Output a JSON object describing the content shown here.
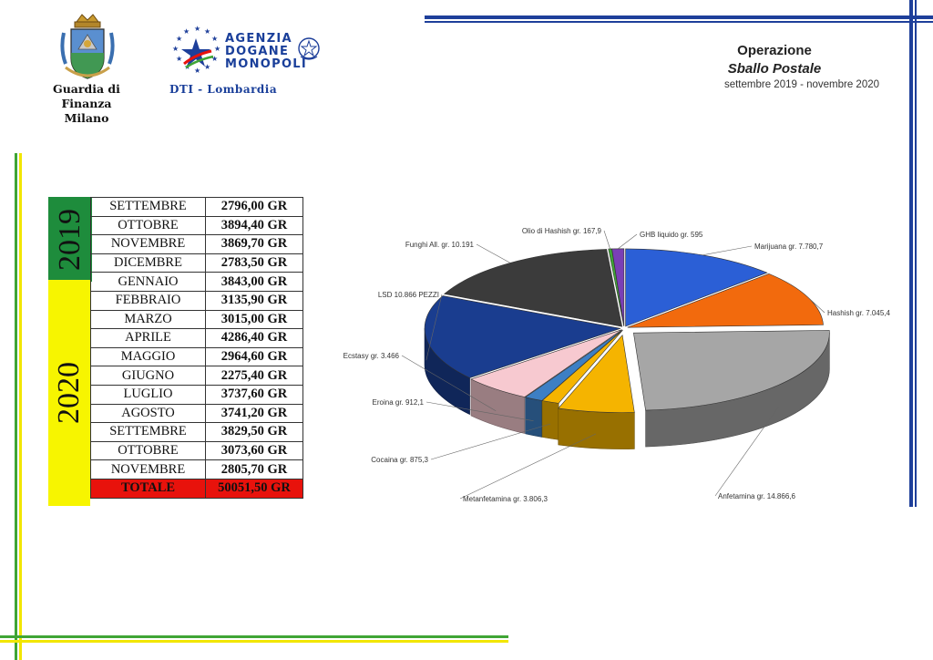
{
  "header": {
    "gdf_line1": "Guardia di Finanza",
    "gdf_line2": "Milano",
    "adm_line1": "AGENZIA",
    "adm_line2": "DOGANE",
    "adm_line3": "MONOPOLI",
    "dti_label": "DTI - Lombardia",
    "operation_title": "Operazione",
    "operation_name": "Sballo Postale",
    "operation_period": "settembre 2019 - novembre 2020"
  },
  "colors": {
    "green": "#1e8c3c",
    "yellow": "#f7f500",
    "blue": "#1e3f9a",
    "total_red": "#e8120c"
  },
  "table": {
    "years": [
      {
        "label": "2019",
        "rows": 4,
        "color": "#1e8c3c"
      },
      {
        "label": "2020",
        "rows": 11,
        "color": "#f7f500"
      }
    ],
    "rows": [
      {
        "month": "SETTEMBRE",
        "value": "2796,00 GR"
      },
      {
        "month": "OTTOBRE",
        "value": "3894,40 GR"
      },
      {
        "month": "NOVEMBRE",
        "value": "3869,70 GR"
      },
      {
        "month": "DICEMBRE",
        "value": "2783,50 GR"
      },
      {
        "month": "GENNAIO",
        "value": "3843,00 GR"
      },
      {
        "month": "FEBBRAIO",
        "value": "3135,90 GR"
      },
      {
        "month": "MARZO",
        "value": "3015,00 GR"
      },
      {
        "month": "APRILE",
        "value": "4286,40 GR"
      },
      {
        "month": "MAGGIO",
        "value": "2964,60 GR"
      },
      {
        "month": "GIUGNO",
        "value": "2275,40 GR"
      },
      {
        "month": "LUGLIO",
        "value": "3737,60 GR"
      },
      {
        "month": "AGOSTO",
        "value": "3741,20 GR"
      },
      {
        "month": "SETTEMBRE",
        "value": "3829,50 GR"
      },
      {
        "month": "OTTOBRE",
        "value": "3073,60 GR"
      },
      {
        "month": "NOVEMBRE",
        "value": "2805,70 GR"
      }
    ],
    "total_label": "TOTALE",
    "total_value": "50051,50 GR"
  },
  "chart_data": {
    "type": "pie",
    "style": "3d-exploded",
    "slices": [
      {
        "label": "Marijuana gr. 7.780,7",
        "value": 7780.7,
        "color": "#2b5fd6"
      },
      {
        "label": "Hashish gr. 7.045,4",
        "value": 7045.4,
        "color": "#f26a0d"
      },
      {
        "label": "Anfetamina gr. 14.866,6",
        "value": 14866.6,
        "color": "#a6a6a6"
      },
      {
        "label": "Metanfetamina gr. 3.806,3",
        "value": 3806.3,
        "color": "#f5b400"
      },
      {
        "label": "Cocaina gr. 875,3",
        "value": 875.3,
        "color": "#f5b400"
      },
      {
        "label": "Eroina gr. 912,1",
        "value": 912.1,
        "color": "#3d7fc4"
      },
      {
        "label": "Ecstasy gr. 3.466",
        "value": 3466,
        "color": "#f7c9d0"
      },
      {
        "label": "LSD 10.866 PEZZI",
        "value": 10866,
        "color": "#1a3d8f"
      },
      {
        "label": "Funghi All. gr.  10.191",
        "value": 10191,
        "color": "#3b3b3b"
      },
      {
        "label": "Olio di Hashish gr. 167,9",
        "value": 167.9,
        "color": "#3fa535"
      },
      {
        "label": "GHB liquido gr. 595",
        "value": 595,
        "color": "#7a3fb5"
      }
    ]
  }
}
